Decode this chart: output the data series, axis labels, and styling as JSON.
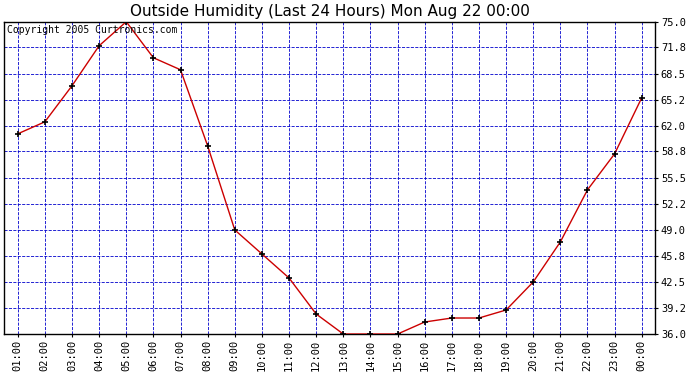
{
  "title": "Outside Humidity (Last 24 Hours) Mon Aug 22 00:00",
  "copyright": "Copyright 2005 Curtronics.com",
  "x_labels": [
    "01:00",
    "02:00",
    "03:00",
    "04:00",
    "05:00",
    "06:00",
    "07:00",
    "08:00",
    "09:00",
    "10:00",
    "11:00",
    "12:00",
    "13:00",
    "14:00",
    "15:00",
    "16:00",
    "17:00",
    "18:00",
    "19:00",
    "20:00",
    "21:00",
    "22:00",
    "23:00",
    "00:00"
  ],
  "y_values": [
    61.0,
    62.5,
    67.0,
    72.0,
    75.0,
    70.5,
    69.0,
    59.5,
    49.0,
    46.0,
    43.0,
    38.5,
    36.0,
    36.0,
    36.0,
    37.5,
    38.0,
    38.0,
    39.0,
    42.5,
    47.5,
    54.0,
    58.5,
    65.5
  ],
  "line_color": "#cc0000",
  "marker_color": "#000000",
  "bg_color": "#ffffff",
  "plot_bg_color": "#ffffff",
  "grid_color": "#0000cc",
  "title_color": "#000000",
  "y_min": 36.0,
  "y_max": 75.0,
  "y_ticks": [
    36.0,
    39.2,
    42.5,
    45.8,
    49.0,
    52.2,
    55.5,
    58.8,
    62.0,
    65.2,
    68.5,
    71.8,
    75.0
  ],
  "title_fontsize": 11,
  "copyright_fontsize": 7,
  "tick_fontsize": 7.5
}
